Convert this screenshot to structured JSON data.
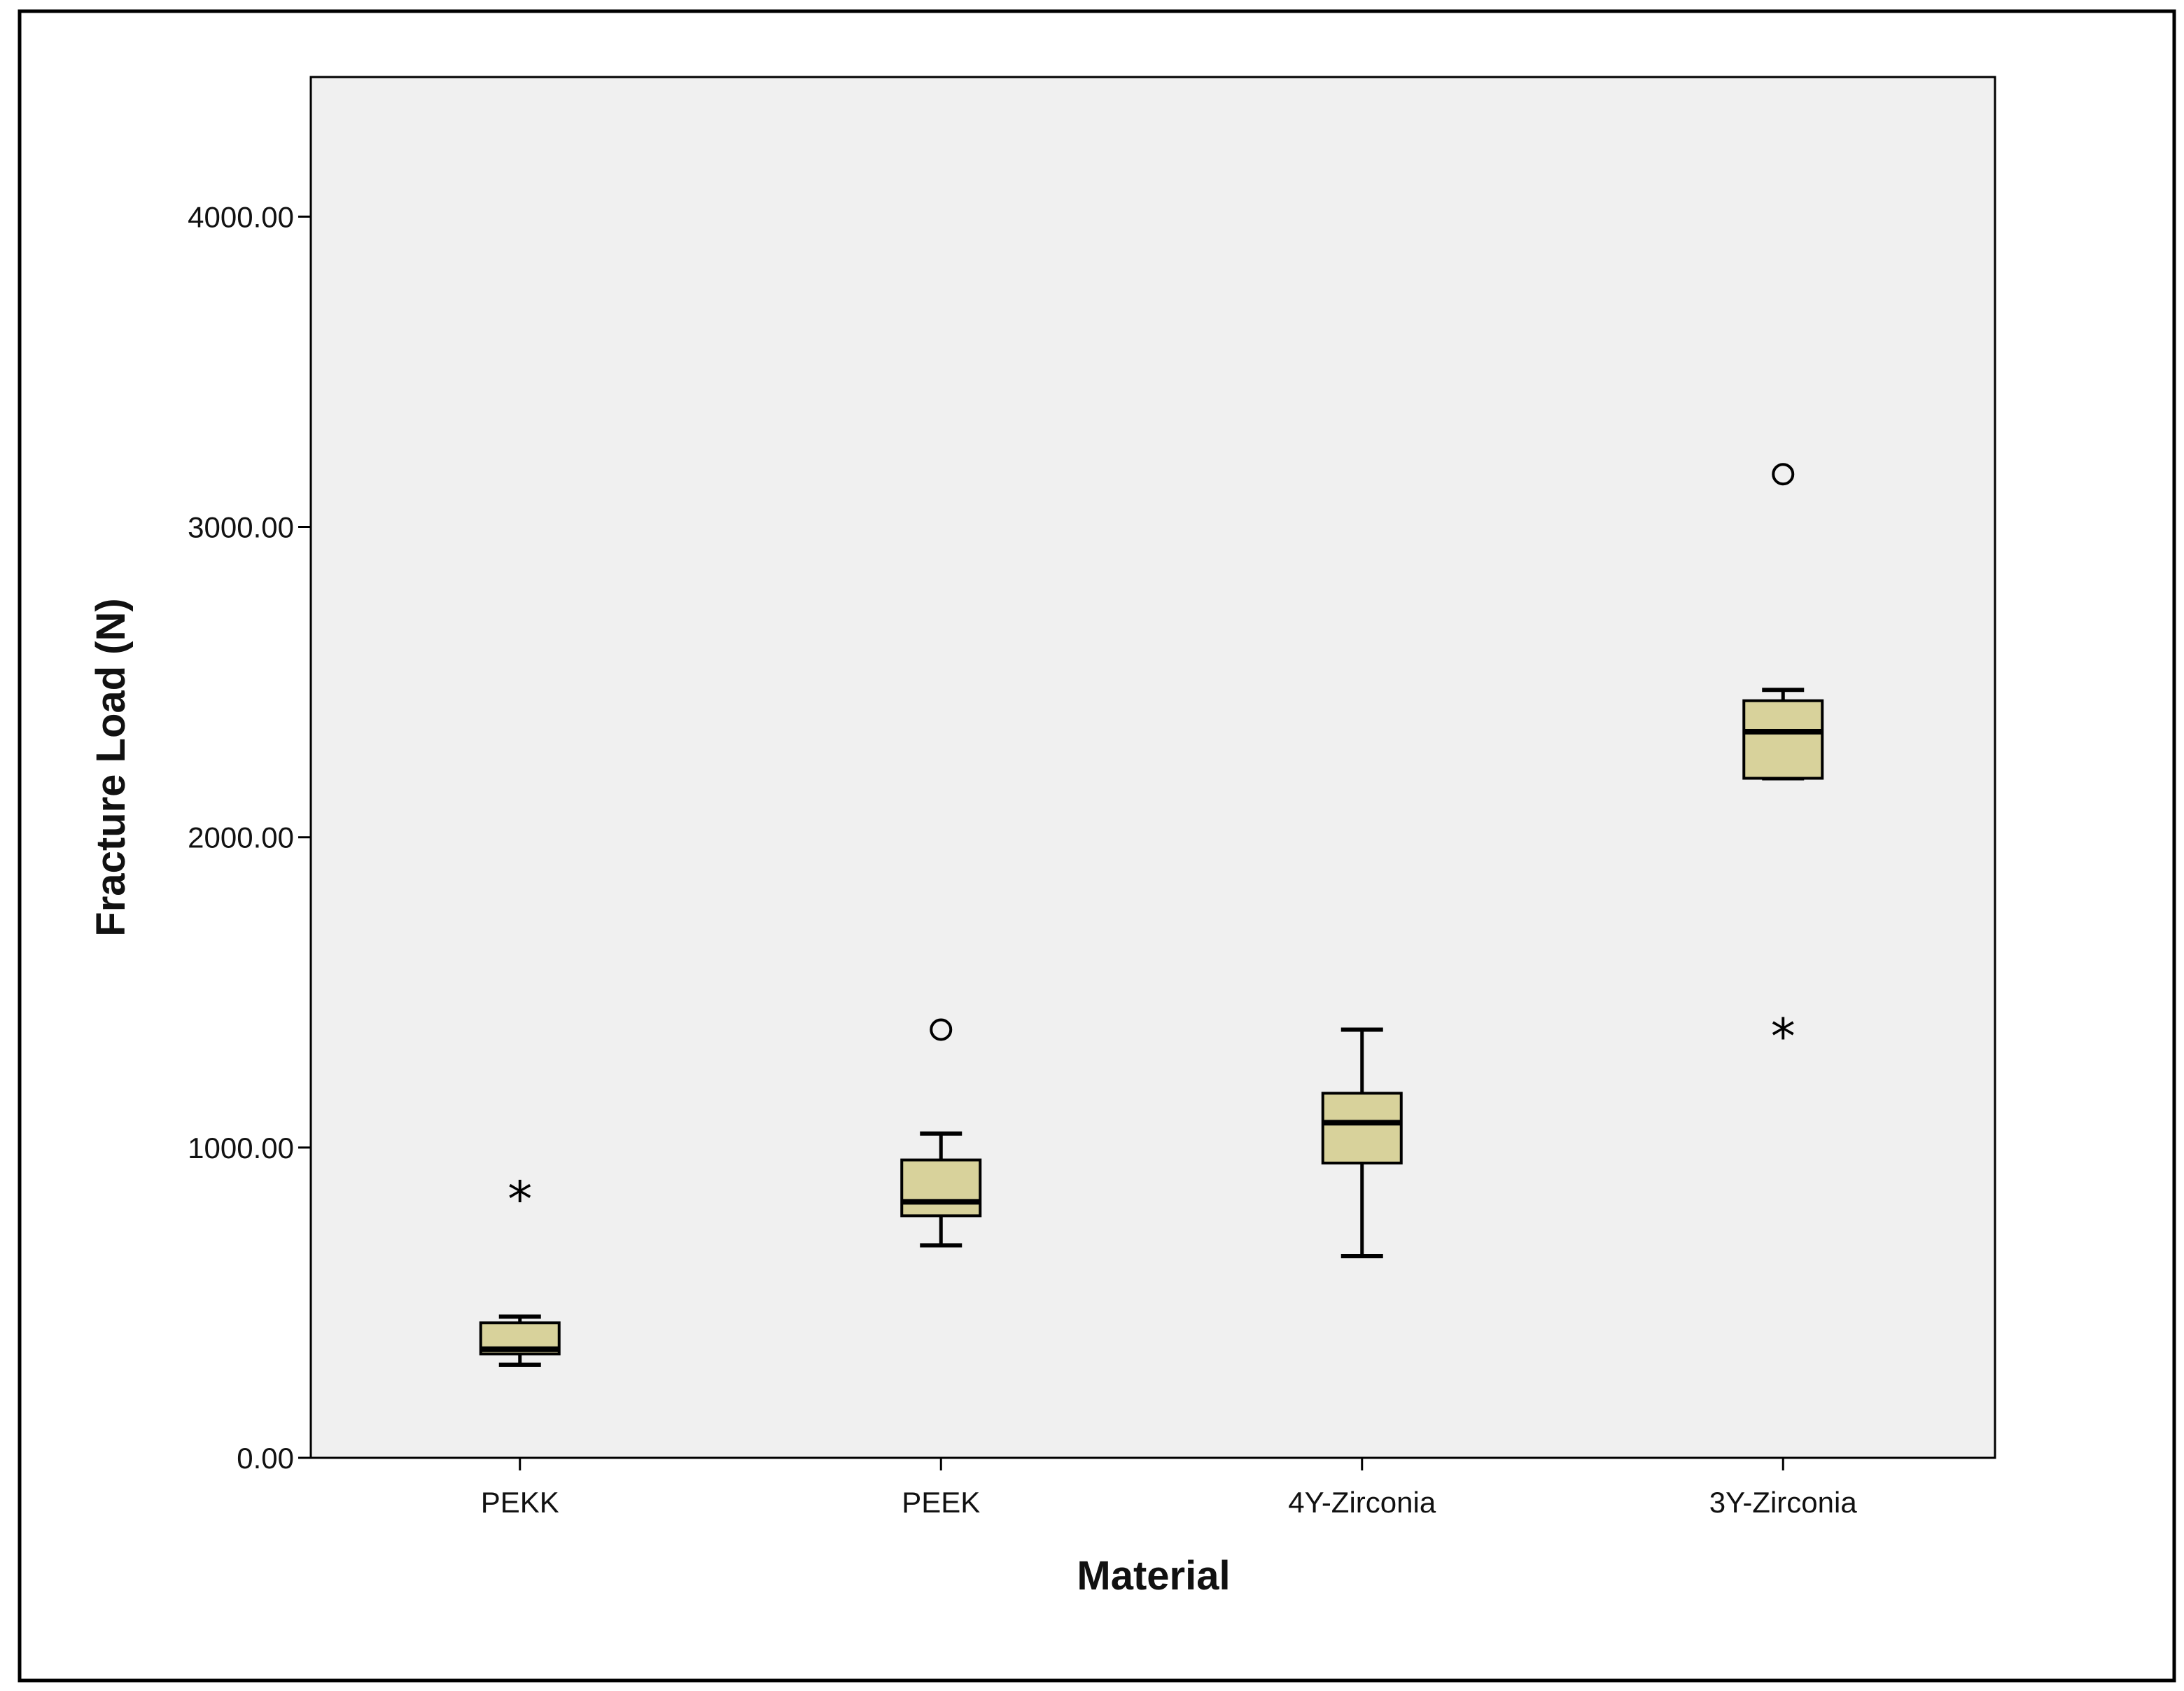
{
  "chart_data": {
    "type": "boxplot",
    "title": "",
    "xlabel": "Material",
    "ylabel": "Fracture Load (N)",
    "ylim": [
      0,
      4450
    ],
    "yticks": [
      0,
      1000,
      2000,
      3000,
      4000
    ],
    "ytick_labels": [
      "0.00",
      "1000.00",
      "2000.00",
      "3000.00",
      "4000.00"
    ],
    "grid": false,
    "categories": [
      "PEKK",
      "PEEK",
      "4Y-Zirconia",
      "3Y-Zirconia"
    ],
    "boxes": [
      {
        "name": "PEKK",
        "whisker_low": 300,
        "q1": 335,
        "median": 350,
        "q3": 435,
        "whisker_high": 455,
        "outliers": [],
        "extremes": [
          855
        ]
      },
      {
        "name": "PEEK",
        "whisker_low": 685,
        "q1": 780,
        "median": 825,
        "q3": 960,
        "whisker_high": 1045,
        "outliers": [
          1380
        ],
        "extremes": []
      },
      {
        "name": "4Y-Zirconia",
        "whisker_low": 650,
        "q1": 950,
        "median": 1080,
        "q3": 1175,
        "whisker_high": 1380,
        "outliers": [],
        "extremes": []
      },
      {
        "name": "3Y-Zirconia",
        "whisker_low": 2190,
        "q1": 2190,
        "median": 2340,
        "q3": 2440,
        "whisker_high": 2475,
        "outliers": [
          3170
        ],
        "extremes": [
          1380
        ]
      }
    ],
    "colors": {
      "box_fill": "#d8d29b",
      "plot_bg": "#f0f0f0",
      "stroke": "#000000"
    }
  }
}
